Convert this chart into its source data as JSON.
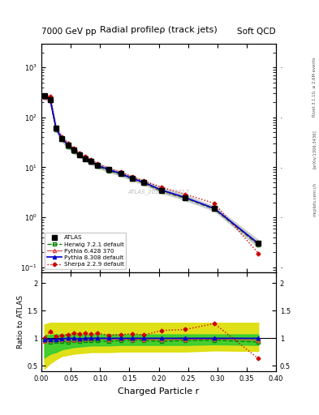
{
  "title": "Radial profileρ (track jets)",
  "header_left": "7000 GeV pp",
  "header_right": "Soft QCD",
  "watermark": "ATLAS_2011_I919017",
  "right_label_top": "Rivet 3.1.10, ≥ 2.6M events",
  "right_label_mid": "[arXiv:1306.3436]",
  "right_label_bot": "mcplots.cern.ch",
  "xlabel": "Charged Particle r",
  "ylabel_bottom": "Ratio to ATLAS",
  "x": [
    0.005,
    0.015,
    0.025,
    0.035,
    0.045,
    0.055,
    0.065,
    0.075,
    0.085,
    0.095,
    0.115,
    0.135,
    0.155,
    0.175,
    0.205,
    0.245,
    0.295,
    0.37
  ],
  "atlas": [
    270,
    230,
    60,
    38,
    28,
    22,
    18,
    15,
    13,
    11,
    9,
    7.5,
    6,
    5,
    3.5,
    2.5,
    1.5,
    0.3
  ],
  "atlas_err_lo": [
    240,
    200,
    52,
    33,
    24,
    19.5,
    16,
    13.5,
    11.5,
    9.8,
    8.0,
    6.8,
    5.4,
    4.5,
    3.1,
    2.2,
    1.35,
    0.25
  ],
  "atlas_err_hi": [
    300,
    260,
    68,
    43,
    32,
    24.5,
    20,
    16.5,
    14.5,
    12.2,
    10.0,
    8.2,
    6.6,
    5.5,
    3.9,
    2.8,
    1.65,
    0.35
  ],
  "herwig": [
    260,
    215,
    57,
    36,
    26,
    21,
    17,
    14.5,
    12.5,
    10.5,
    8.5,
    7.2,
    5.8,
    4.8,
    3.3,
    2.4,
    1.45,
    0.28
  ],
  "pythia6": [
    255,
    220,
    58,
    37,
    27.5,
    21.5,
    17.5,
    14.8,
    12.8,
    11,
    8.8,
    7.4,
    5.9,
    4.9,
    3.4,
    2.45,
    1.48,
    0.29
  ],
  "pythia8": [
    265,
    225,
    59,
    37.5,
    28,
    22,
    17.8,
    15,
    13,
    11,
    9,
    7.5,
    6,
    5,
    3.5,
    2.5,
    1.5,
    0.3
  ],
  "sherpa": [
    270,
    260,
    62,
    40,
    30,
    24,
    19.5,
    16.5,
    14,
    12,
    9.5,
    8,
    6.5,
    5.3,
    4.0,
    2.9,
    1.9,
    0.19
  ],
  "herwig_ratio": [
    0.96,
    0.93,
    0.95,
    0.95,
    0.93,
    0.955,
    0.945,
    0.967,
    0.962,
    0.955,
    0.944,
    0.96,
    0.967,
    0.96,
    0.943,
    0.96,
    0.967,
    0.93
  ],
  "pythia6_ratio": [
    0.94,
    0.96,
    0.97,
    0.97,
    0.98,
    0.977,
    0.972,
    0.987,
    0.985,
    1.0,
    0.978,
    0.987,
    0.983,
    0.98,
    0.971,
    0.98,
    0.987,
    0.967
  ],
  "pythia8_ratio": [
    0.98,
    0.98,
    0.98,
    0.99,
    1.0,
    1.0,
    0.99,
    1.0,
    1.0,
    1.0,
    1.0,
    1.0,
    1.0,
    1.0,
    1.0,
    1.0,
    1.0,
    1.0
  ],
  "sherpa_ratio": [
    1.0,
    1.13,
    1.03,
    1.05,
    1.07,
    1.09,
    1.083,
    1.1,
    1.077,
    1.09,
    1.056,
    1.067,
    1.083,
    1.06,
    1.143,
    1.16,
    1.267,
    0.633
  ],
  "green_band_lo": [
    0.65,
    0.72,
    0.75,
    0.8,
    0.82,
    0.84,
    0.85,
    0.86,
    0.87,
    0.87,
    0.87,
    0.88,
    0.88,
    0.88,
    0.88,
    0.88,
    0.89,
    0.88
  ],
  "green_band_hi": [
    1.05,
    1.06,
    1.07,
    1.07,
    1.07,
    1.07,
    1.07,
    1.07,
    1.07,
    1.07,
    1.07,
    1.07,
    1.07,
    1.07,
    1.07,
    1.07,
    1.07,
    1.07
  ],
  "yellow_band_lo": [
    0.45,
    0.55,
    0.62,
    0.68,
    0.7,
    0.72,
    0.73,
    0.74,
    0.75,
    0.75,
    0.75,
    0.76,
    0.76,
    0.76,
    0.76,
    0.76,
    0.78,
    0.77
  ],
  "yellow_band_hi": [
    1.25,
    1.28,
    1.28,
    1.28,
    1.28,
    1.28,
    1.28,
    1.28,
    1.28,
    1.28,
    1.28,
    1.28,
    1.28,
    1.28,
    1.28,
    1.28,
    1.28,
    1.28
  ],
  "color_atlas": "#000000",
  "color_herwig": "#008800",
  "color_pythia6": "#dd4444",
  "color_pythia8": "#0000cc",
  "color_sherpa": "#cc0000"
}
